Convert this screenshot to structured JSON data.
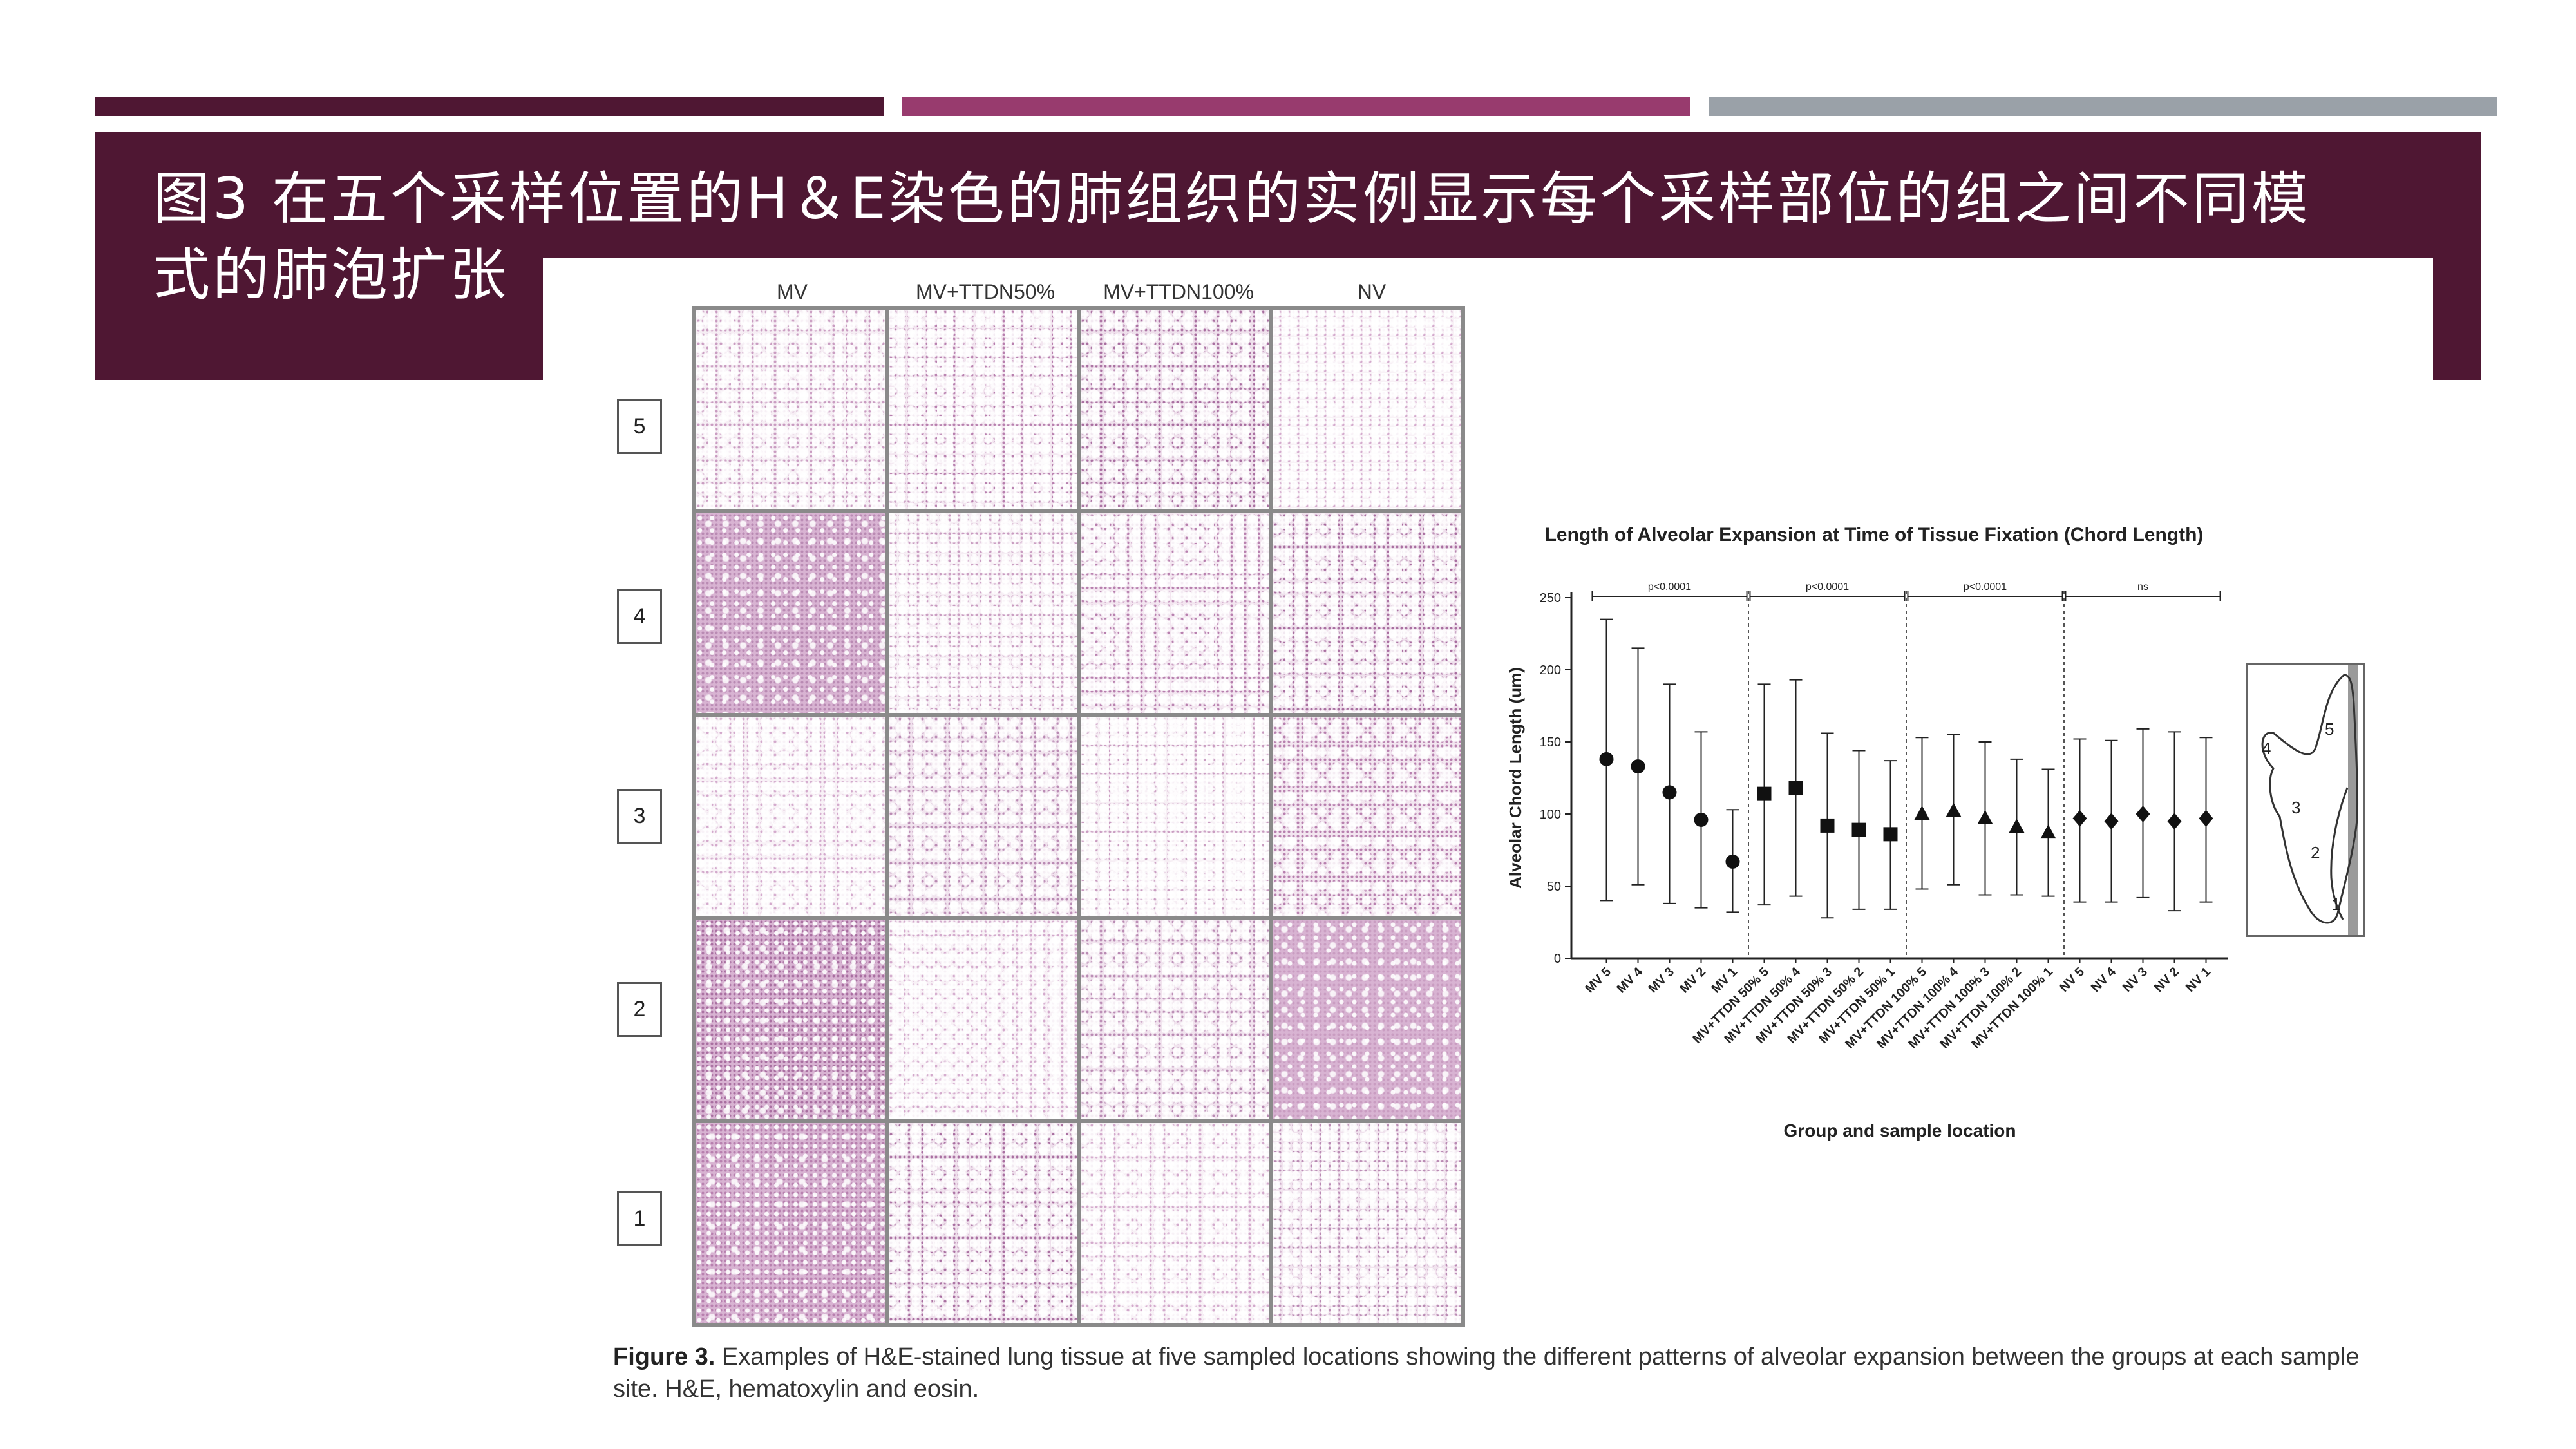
{
  "slide": {
    "title": "图3 在五个采样位置的H＆E染色的肺组织的实例显示每个采样部位的组之间不同模式的肺泡扩张",
    "bar_colors": [
      "#4f1733",
      "#983b6e",
      "#9aa1a8"
    ]
  },
  "figure": {
    "columns": [
      "MV",
      "MV+TTDN50%",
      "MV+TTDN100%",
      "NV"
    ],
    "rows": [
      "5",
      "4",
      "3",
      "2",
      "1"
    ],
    "caption_label": "Figure 3.",
    "caption_text": " Examples of H&E-stained lung tissue at five sampled locations showing the different patterns of alveolar expansion between the groups at each sample site. H&E, hematoxylin and eosin."
  },
  "chart_data": {
    "type": "scatter",
    "title": "Length of Alveolar Expansion at Time of Tissue Fixation (Chord Length)",
    "xlabel": "Group and sample location",
    "ylabel": "Alveolar Chord Length (um)",
    "ylim": [
      0,
      250
    ],
    "yticks": [
      0,
      50,
      100,
      150,
      200,
      250
    ],
    "categories": [
      "MV 5",
      "MV 4",
      "MV 3",
      "MV 2",
      "MV 1",
      "MV+TTDN 50% 5",
      "MV+TTDN 50% 4",
      "MV+TTDN 50% 3",
      "MV+TTDN 50% 2",
      "MV+TTDN 50% 1",
      "MV+TTDN 100% 5",
      "MV+TTDN 100% 4",
      "MV+TTDN 100% 3",
      "MV+TTDN 100% 2",
      "MV+TTDN 100% 1",
      "NV 5",
      "NV 4",
      "NV 3",
      "NV 2",
      "NV 1"
    ],
    "series": [
      {
        "marker": "circle",
        "values": [
          138,
          133,
          115,
          96,
          67
        ],
        "upper": [
          235,
          215,
          190,
          157,
          103
        ],
        "lower": [
          40,
          51,
          38,
          35,
          32
        ]
      },
      {
        "marker": "square",
        "values": [
          114,
          118,
          92,
          89,
          86
        ],
        "upper": [
          190,
          193,
          156,
          144,
          137
        ],
        "lower": [
          37,
          43,
          28,
          34,
          34
        ]
      },
      {
        "marker": "triangle",
        "values": [
          100,
          102,
          97,
          91,
          87
        ],
        "upper": [
          153,
          155,
          150,
          138,
          131
        ],
        "lower": [
          48,
          51,
          44,
          44,
          43
        ]
      },
      {
        "marker": "diamond",
        "values": [
          97,
          95,
          100,
          95,
          97
        ],
        "upper": [
          152,
          151,
          159,
          157,
          153
        ],
        "lower": [
          39,
          39,
          42,
          33,
          39
        ]
      }
    ],
    "significance": [
      "p<0.0001",
      "p<0.0001",
      "p<0.0001",
      "ns"
    ],
    "inset_labels": [
      "5",
      "4",
      "3",
      "2",
      "1"
    ]
  }
}
